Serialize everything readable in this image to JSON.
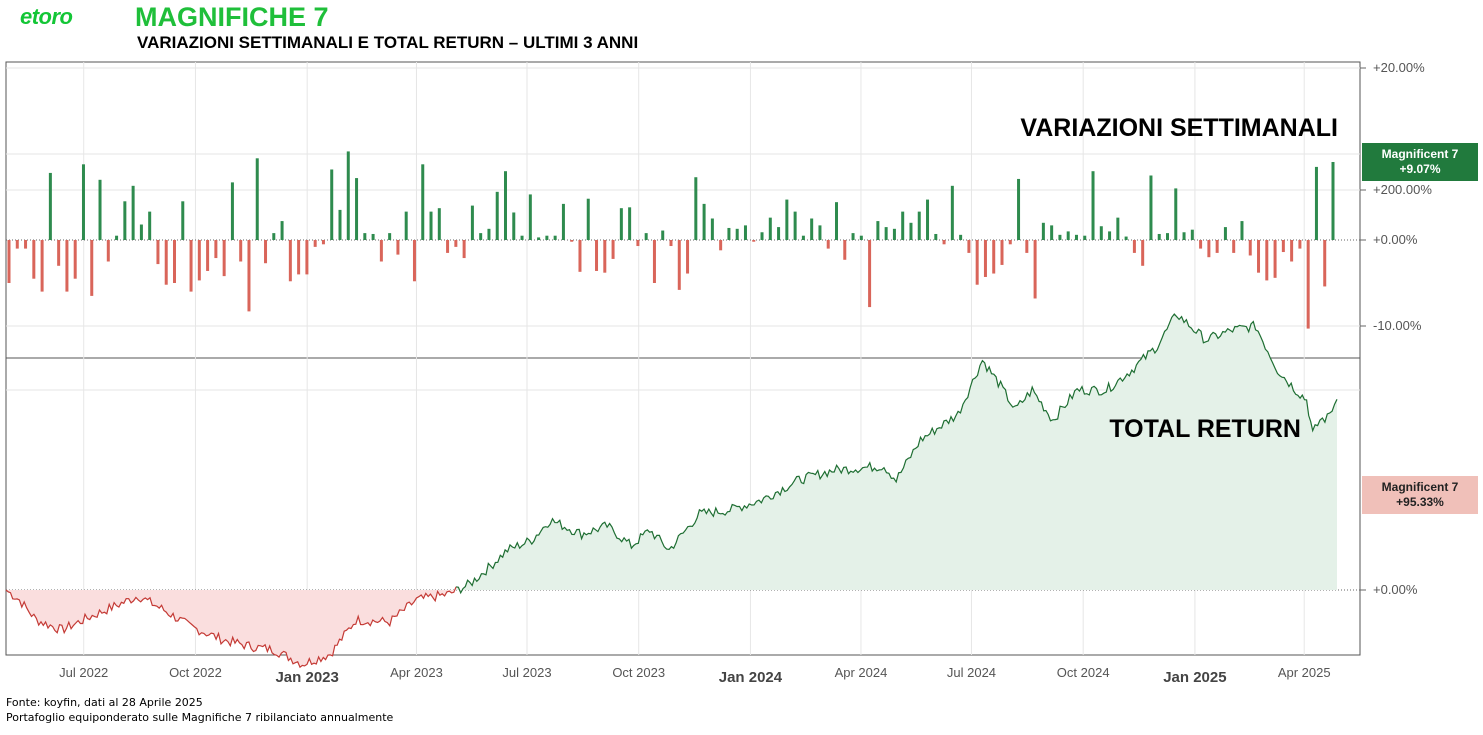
{
  "header": {
    "logo_text": "etoro",
    "title": "MAGNIFICHE 7",
    "subtitle": "VARIAZIONI SETTIMANALI E TOTAL RETURN – ULTIMI 3 ANNI",
    "brand_color": "#1fbf3a"
  },
  "footer": {
    "source": "Fonte: koyfin, dati al 28 Aprile 2025",
    "note": "Portafoglio equiponderato sulle Magnifiche 7 ribilanciato annualmente"
  },
  "colors": {
    "positive": "#2e8b4e",
    "negative": "#d9655a",
    "line_positive": "#1e6e32",
    "line_negative": "#c43a35",
    "area_positive": "#e4f1e8",
    "area_negative": "#fadede",
    "badge_positive": "#217a3d",
    "badge_negative": "#f0c0b9"
  },
  "chart_data": [
    {
      "type": "bar",
      "panel_title": "VARIAZIONI SETTIMANALI",
      "series": [
        {
          "name": "Magnificent 7"
        }
      ],
      "last_value_label": "+9.07%",
      "y_ticks": [
        "+20.00%",
        "+0.00%",
        "-10.00%"
      ],
      "ylim": [
        -13,
        20
      ],
      "grid": true,
      "values": [
        -5,
        -1,
        -1,
        -4.5,
        -6,
        7.8,
        -3,
        -6,
        -4.5,
        8.8,
        -6.5,
        7,
        -2.5,
        0.5,
        4.5,
        6.3,
        1.8,
        3.3,
        -2.8,
        -5.2,
        -5,
        4.5,
        -6,
        -4.7,
        -3.6,
        -2.1,
        -4.2,
        6.7,
        -2.5,
        -8.3,
        9.5,
        -2.7,
        0.8,
        2.2,
        -4.8,
        -4,
        -4,
        -0.8,
        -0.5,
        8.2,
        3.5,
        10.3,
        7.2,
        0.8,
        0.7,
        -2.5,
        0.8,
        -1.7,
        3.3,
        -4.8,
        8.8,
        3.3,
        3.7,
        -1.5,
        -0.8,
        -2.1,
        4,
        0.8,
        1.3,
        5.6,
        8,
        3.2,
        0.5,
        5.3,
        0.3,
        0.5,
        0.5,
        4.2,
        -0.2,
        -3.7,
        4.8,
        -3.6,
        -3.8,
        -2.2,
        3.7,
        3.8,
        -0.7,
        0.8,
        -5,
        1.1,
        -0.7,
        -5.8,
        -3.9,
        7.3,
        4.2,
        2.5,
        -1.2,
        1.4,
        1.3,
        1.7,
        -0.2,
        0.9,
        2.6,
        1.5,
        4.7,
        3.3,
        0.5,
        2.5,
        1.7,
        -1,
        4.4,
        -2.3,
        0.8,
        0.5,
        -7.8,
        2.2,
        1.5,
        1.3,
        3.3,
        2,
        3.3,
        4.7,
        0.7,
        -0.5,
        6.3,
        0.6,
        -1.5,
        -5.2,
        -4.3,
        -3.9,
        -2.9,
        -0.5,
        7.1,
        -1.5,
        -6.8,
        2,
        1.7,
        0.6,
        1,
        0.6,
        0.5,
        8,
        1.6,
        1,
        2.6,
        0.4,
        -1.5,
        -3,
        7.5,
        0.7,
        0.8,
        6,
        0.9,
        1.2,
        -1,
        -2,
        -1.5,
        1.5,
        -1.5,
        2.2,
        -1.8,
        -3.8,
        -4.7,
        -4.4,
        -1.4,
        -2.5,
        -1,
        -10.3,
        8.5,
        -5.4,
        9.07
      ]
    },
    {
      "type": "area",
      "panel_title": "TOTAL RETURN",
      "series": [
        {
          "name": "Magnificent 7"
        }
      ],
      "last_value_label": "+95.33%",
      "y_ticks": [
        "+200.00%",
        "+0.00%"
      ],
      "ylim": [
        -62,
        220
      ],
      "x_ticks": [
        "Jul 2022",
        "Oct 2022",
        "Jan 2023",
        "Apr 2023",
        "Jul 2023",
        "Oct 2023",
        "Jan 2024",
        "Apr 2024",
        "Jul 2024",
        "Oct 2024",
        "Jan 2025",
        "Apr 2025"
      ],
      "x_ticks_major": [
        "Jan 2023",
        "Jan 2024",
        "Jan 2025"
      ],
      "grid": true,
      "x_start": "2022-04-28",
      "x_end": "2025-04-28",
      "points": [
        [
          "2022-04-28",
          0
        ],
        [
          "2022-05-09",
          -5
        ],
        [
          "2022-05-23",
          -15
        ],
        [
          "2022-06-13",
          -20
        ],
        [
          "2022-07-04",
          -14
        ],
        [
          "2022-08-15",
          -3
        ],
        [
          "2022-09-05",
          -10
        ],
        [
          "2022-09-26",
          -18
        ],
        [
          "2022-10-24",
          -25
        ],
        [
          "2022-11-14",
          -28
        ],
        [
          "2022-12-05",
          -30
        ],
        [
          "2022-12-28",
          -37
        ],
        [
          "2023-01-20",
          -32
        ],
        [
          "2023-02-10",
          -15
        ],
        [
          "2023-03-10",
          -16
        ],
        [
          "2023-04-01",
          -5
        ],
        [
          "2023-04-28",
          -2
        ],
        [
          "2023-05-15",
          3
        ],
        [
          "2023-06-01",
          12
        ],
        [
          "2023-06-15",
          20
        ],
        [
          "2023-07-05",
          25
        ],
        [
          "2023-07-20",
          35
        ],
        [
          "2023-08-15",
          28
        ],
        [
          "2023-09-05",
          32
        ],
        [
          "2023-09-25",
          22
        ],
        [
          "2023-10-10",
          30
        ],
        [
          "2023-10-26",
          20
        ],
        [
          "2023-11-20",
          38
        ],
        [
          "2023-12-15",
          40
        ],
        [
          "2024-01-10",
          45
        ],
        [
          "2024-02-10",
          55
        ],
        [
          "2024-03-10",
          60
        ],
        [
          "2024-04-20",
          62
        ],
        [
          "2024-04-30",
          55
        ],
        [
          "2024-05-20",
          75
        ],
        [
          "2024-06-20",
          88
        ],
        [
          "2024-07-10",
          115
        ],
        [
          "2024-07-25",
          102
        ],
        [
          "2024-08-06",
          90
        ],
        [
          "2024-08-20",
          100
        ],
        [
          "2024-09-06",
          85
        ],
        [
          "2024-09-26",
          100
        ],
        [
          "2024-10-20",
          100
        ],
        [
          "2024-11-10",
          110
        ],
        [
          "2024-12-01",
          122
        ],
        [
          "2024-12-17",
          138
        ],
        [
          "2025-01-10",
          125
        ],
        [
          "2025-02-01",
          130
        ],
        [
          "2025-02-20",
          132
        ],
        [
          "2025-03-10",
          110
        ],
        [
          "2025-03-25",
          100
        ],
        [
          "2025-04-03",
          95
        ],
        [
          "2025-04-08",
          78
        ],
        [
          "2025-04-14",
          85
        ],
        [
          "2025-04-20",
          86
        ],
        [
          "2025-04-28",
          95.33
        ]
      ]
    }
  ]
}
